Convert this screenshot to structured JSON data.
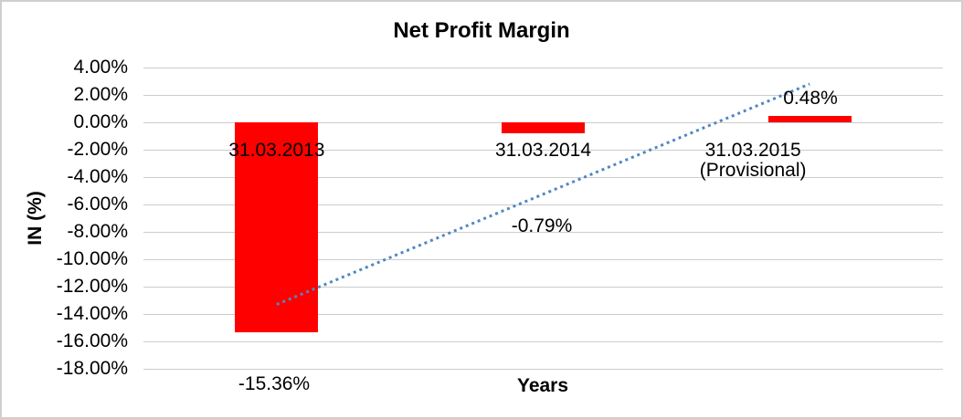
{
  "window": {
    "background": "#ffffff",
    "frame_border_color": "#cfcfcf"
  },
  "chart_data": {
    "type": "bar",
    "title": "Net Profit Margin",
    "xlabel": "Years",
    "ylabel": "IN (%)",
    "categories": [
      "31.03.2013",
      "31.03.2014",
      "31.03.2015\n(Provisional)"
    ],
    "values": [
      -15.36,
      -0.79,
      0.48
    ],
    "data_labels": [
      "-15.36%",
      "-0.79%",
      "0.48%"
    ],
    "ytick_labels": [
      "4.00%",
      "2.00%",
      "0.00%",
      "-2.00%",
      "-4.00%",
      "-6.00%",
      "-8.00%",
      "-10.00%",
      "-12.00%",
      "-14.00%",
      "-16.00%",
      "-18.00%"
    ],
    "yticks": [
      4,
      2,
      0,
      -2,
      -4,
      -6,
      -8,
      -10,
      -12,
      -14,
      -16,
      -18
    ],
    "ylim": [
      -18,
      4
    ],
    "ytick_step": 2,
    "grid": true,
    "legend": "none",
    "bar_color": "#ff0000",
    "gridline_color": "#cccccc",
    "text_color": "#000000",
    "trendline": {
      "style": "dotted",
      "color": "#4f87c5",
      "from": {
        "category_index": 0,
        "value": -13.3
      },
      "to": {
        "category_index": 2,
        "value": 2.8
      }
    }
  }
}
